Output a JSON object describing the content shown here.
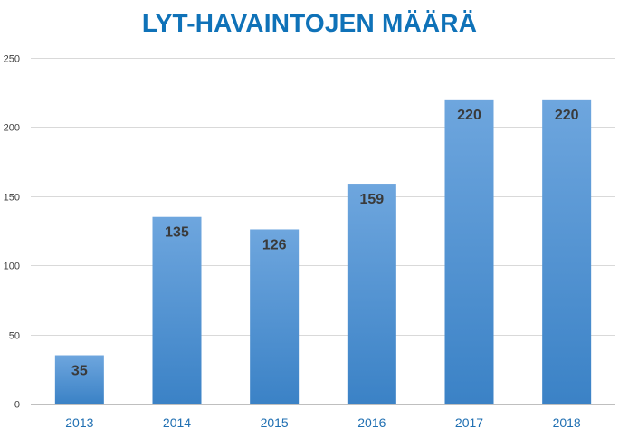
{
  "chart_data": {
    "type": "bar",
    "title": "LYT-HAVAINTOJEN MÄÄRÄ",
    "xlabel": "",
    "ylabel": "",
    "categories": [
      "2013",
      "2014",
      "2015",
      "2016",
      "2017",
      "2018"
    ],
    "values": [
      35,
      135,
      126,
      159,
      220,
      220
    ],
    "ylim": [
      0,
      250
    ],
    "yticks": [
      0,
      50,
      100,
      150,
      200,
      250
    ],
    "grid": true,
    "legend": "none",
    "colors": {
      "title": "#0f72b8",
      "bar_top": "#6ea6de",
      "bar_bottom": "#3b82c6",
      "x_tick": "#1f6fb2"
    }
  }
}
